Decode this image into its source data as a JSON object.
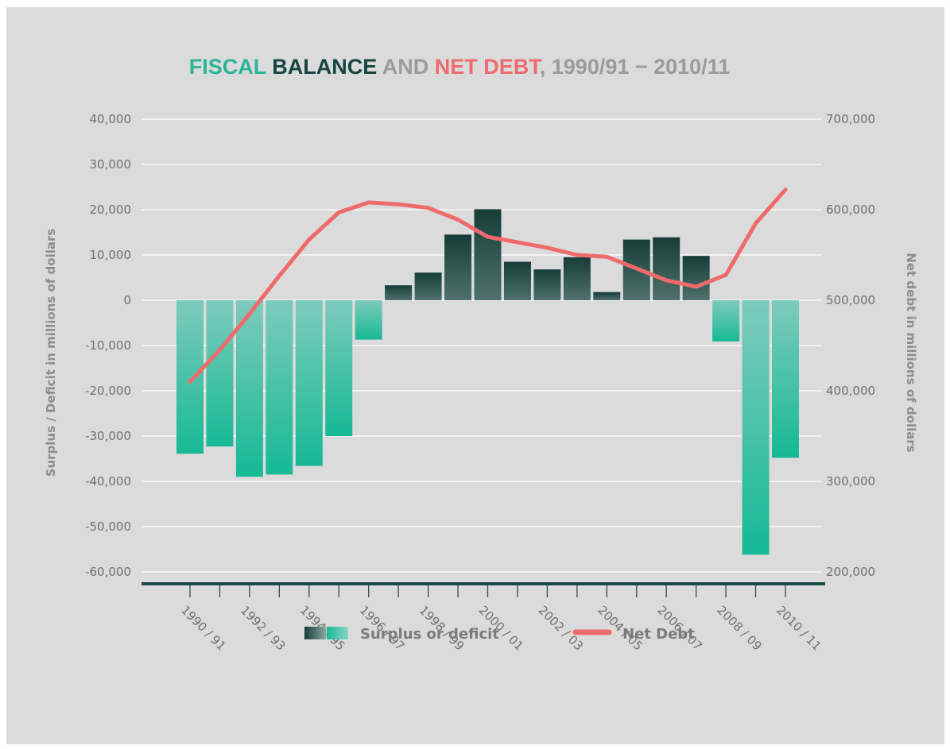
{
  "chart_data": {
    "type": "bar",
    "title_parts": [
      {
        "text": "FISCAL ",
        "color": "#2ab598"
      },
      {
        "text": "BALANCE ",
        "color": "#174540"
      },
      {
        "text": "AND ",
        "color": "#9b9b9b"
      },
      {
        "text": "NET DEBT",
        "color": "#ef6b6b"
      },
      {
        "text": ", 1990/91 − 2010/11",
        "color": "#9b9b9b"
      }
    ],
    "ylabel_left": "Surplus / Deficit in millions of dollars",
    "ylabel_right": "Net debt in millions of dollars",
    "left_axis": {
      "min": -60000,
      "max": 40000,
      "ticks": [
        "40,000",
        "30,000",
        "20,000",
        "10,000",
        "0",
        "-10,000",
        "-20,000",
        "-30,000",
        "-40,000",
        "-50,000",
        "-60,000"
      ]
    },
    "right_axis": {
      "min": 200000,
      "max": 700000,
      "ticks": [
        "700,000",
        "600,000",
        "500,000",
        "400,000",
        "300,000",
        "200,000"
      ]
    },
    "categories": [
      "1990/91",
      "1991/92",
      "1992/93",
      "1993/94",
      "1994/95",
      "1995/96",
      "1996/97",
      "1997/98",
      "1998/99",
      "1999/00",
      "2000/01",
      "2001/02",
      "2002/03",
      "2003/04",
      "2004/05",
      "2005/06",
      "2006/07",
      "2007/08",
      "2008/09",
      "2009/10",
      "2010/11"
    ],
    "x_tick_labels": [
      "1990 / 91",
      "1992 / 93",
      "1994 / 95",
      "1996 / 97",
      "1998 / 99",
      "2000 / 01",
      "2002 / 03",
      "2004 / 05",
      "2006 / 07",
      "2008 / 09",
      "2010 / 11"
    ],
    "series": [
      {
        "name": "Surplus or deficit",
        "type": "bar",
        "values": [
          -33900,
          -32300,
          -39000,
          -38500,
          -36600,
          -30000,
          -8700,
          3300,
          6100,
          14500,
          20100,
          8500,
          6800,
          9500,
          1800,
          13400,
          13900,
          9800,
          -9100,
          -56200,
          -34800
        ]
      },
      {
        "name": "Net Debt",
        "type": "line",
        "color": "#ef6b6b",
        "values": [
          410000,
          445000,
          485000,
          527000,
          567000,
          597000,
          608000,
          606000,
          602000,
          589000,
          570000,
          564000,
          558000,
          550000,
          548000,
          535000,
          522000,
          515000,
          528000,
          585000,
          622000
        ]
      }
    ],
    "grid": true,
    "legend_position": "bottom",
    "colors": {
      "surplus_dark": "#163d38",
      "surplus_light": "#4f716c",
      "deficit_light": "#7ecbbc",
      "deficit_dark": "#16b995",
      "line": "#ef6b6b",
      "axis_line": "#1e4a45",
      "background": "#dbdbdb"
    }
  }
}
